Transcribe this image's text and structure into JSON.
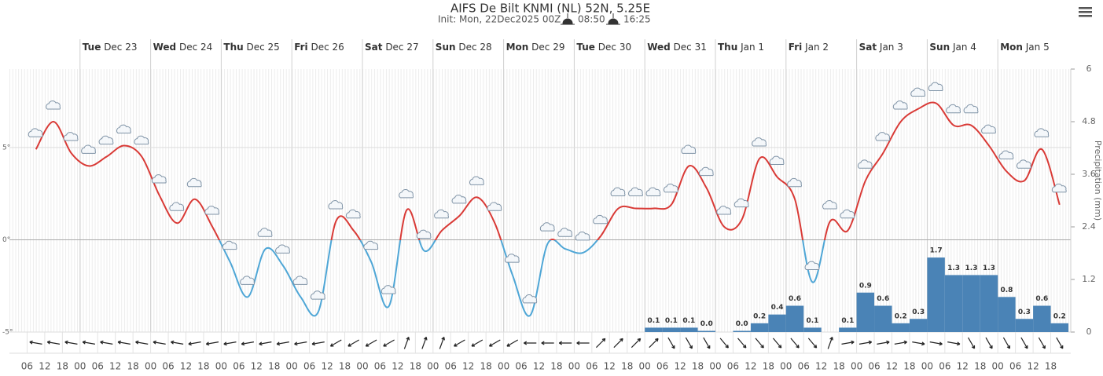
{
  "chart_data": {
    "type": "meteogram",
    "title": "AIFS De Bilt KNMI (NL) 52N, 5.25E",
    "subtitle": "Init: Mon, 22Dec2025 00Z",
    "sunrise": "08:50",
    "sunset": "16:25",
    "days": [
      {
        "weekday": "Tue",
        "date": "Dec 23"
      },
      {
        "weekday": "Wed",
        "date": "Dec 24"
      },
      {
        "weekday": "Thu",
        "date": "Dec 25"
      },
      {
        "weekday": "Fri",
        "date": "Dec 26"
      },
      {
        "weekday": "Sat",
        "date": "Dec 27"
      },
      {
        "weekday": "Sun",
        "date": "Dec 28"
      },
      {
        "weekday": "Mon",
        "date": "Dec 29"
      },
      {
        "weekday": "Tue",
        "date": "Dec 30"
      },
      {
        "weekday": "Wed",
        "date": "Dec 31"
      },
      {
        "weekday": "Thu",
        "date": "Jan 1"
      },
      {
        "weekday": "Fri",
        "date": "Jan 2"
      },
      {
        "weekday": "Sat",
        "date": "Jan 3"
      },
      {
        "weekday": "Sun",
        "date": "Jan 4"
      },
      {
        "weekday": "Mon",
        "date": "Jan 5"
      }
    ],
    "categories": [
      "06",
      "12",
      "18",
      "00",
      "06",
      "12",
      "18",
      "00",
      "06",
      "12",
      "18",
      "00",
      "06",
      "12",
      "18",
      "00",
      "06",
      "12",
      "18",
      "00",
      "06",
      "12",
      "18",
      "00",
      "06",
      "12",
      "18",
      "00",
      "06",
      "12",
      "18",
      "00",
      "06",
      "12",
      "18",
      "00",
      "06",
      "12",
      "18",
      "00",
      "06",
      "12",
      "18",
      "00",
      "06",
      "12",
      "18",
      "00",
      "06",
      "12",
      "18",
      "00",
      "06",
      "12",
      "18",
      "00",
      "06",
      "12",
      "18"
    ],
    "ylim": [
      -5,
      9.25
    ],
    "yticks": [
      {
        "value": 5,
        "label": "5°"
      },
      {
        "value": 0,
        "label": "0°"
      },
      {
        "value": -5,
        "label": "-5°"
      }
    ],
    "y2label": "Precipitation (mm)",
    "y2lim": [
      0,
      6
    ],
    "y2ticks": [
      0,
      1.2,
      2.4,
      3.6,
      4.8,
      6
    ],
    "temperature": {
      "color_above": "#d93a36",
      "color_below": "#4ea6d6",
      "values": [
        4.9,
        6.4,
        4.7,
        4.0,
        4.5,
        5.1,
        4.5,
        2.4,
        0.9,
        2.2,
        0.7,
        -1.2,
        -3.1,
        -0.5,
        -1.4,
        -3.1,
        -3.9,
        1.0,
        0.5,
        -1.2,
        -3.6,
        1.6,
        -0.6,
        0.5,
        1.3,
        2.3,
        0.9,
        -1.9,
        -4.1,
        -0.2,
        -0.5,
        -0.7,
        0.2,
        1.7,
        1.7,
        1.7,
        1.9,
        4.0,
        2.8,
        0.7,
        1.1,
        4.4,
        3.4,
        2.2,
        -2.3,
        1.0,
        0.5,
        3.2,
        4.7,
        6.4,
        7.1,
        7.4,
        6.2,
        6.2,
        5.1,
        3.7,
        3.2,
        4.9,
        1.9
      ]
    },
    "precipitation": {
      "color": "#4a83b6",
      "values": [
        null,
        null,
        null,
        null,
        null,
        null,
        null,
        null,
        null,
        null,
        null,
        null,
        null,
        null,
        null,
        null,
        null,
        null,
        null,
        null,
        null,
        null,
        null,
        null,
        null,
        null,
        null,
        null,
        null,
        null,
        null,
        null,
        null,
        null,
        null,
        0.1,
        0.1,
        0.1,
        0,
        null,
        0,
        0.2,
        0.4,
        0.6,
        0.1,
        null,
        0.1,
        0.9,
        0.6,
        0.2,
        0.3,
        1.7,
        1.3,
        1.3,
        1.3,
        0.8,
        0.3,
        0.6,
        0.2
      ],
      "value_labels": [
        null,
        null,
        null,
        null,
        null,
        null,
        null,
        null,
        null,
        null,
        null,
        null,
        null,
        null,
        null,
        null,
        null,
        null,
        null,
        null,
        null,
        null,
        null,
        null,
        null,
        null,
        null,
        null,
        null,
        null,
        null,
        null,
        null,
        null,
        null,
        "0.1",
        "0.1",
        "0.1",
        "0.0",
        null,
        "0.0",
        "0.2",
        "0.4",
        "0.6",
        "0.1",
        null,
        "0.1",
        "0.9",
        "0.6",
        "0.2",
        "0.3",
        "1.7",
        "1.3",
        "1.3",
        "1.3",
        "0.8",
        "0.3",
        "0.6",
        "0.2"
      ]
    },
    "wind_direction": [
      100,
      100,
      100,
      100,
      100,
      100,
      100,
      100,
      100,
      80,
      80,
      80,
      80,
      80,
      80,
      80,
      80,
      60,
      60,
      60,
      60,
      200,
      200,
      200,
      60,
      60,
      60,
      60,
      90,
      90,
      90,
      90,
      225,
      225,
      225,
      225,
      330,
      330,
      330,
      320,
      320,
      320,
      320,
      320,
      320,
      200,
      260,
      260,
      260,
      260,
      280,
      280,
      280,
      330,
      330,
      330,
      330,
      330,
      330
    ]
  }
}
